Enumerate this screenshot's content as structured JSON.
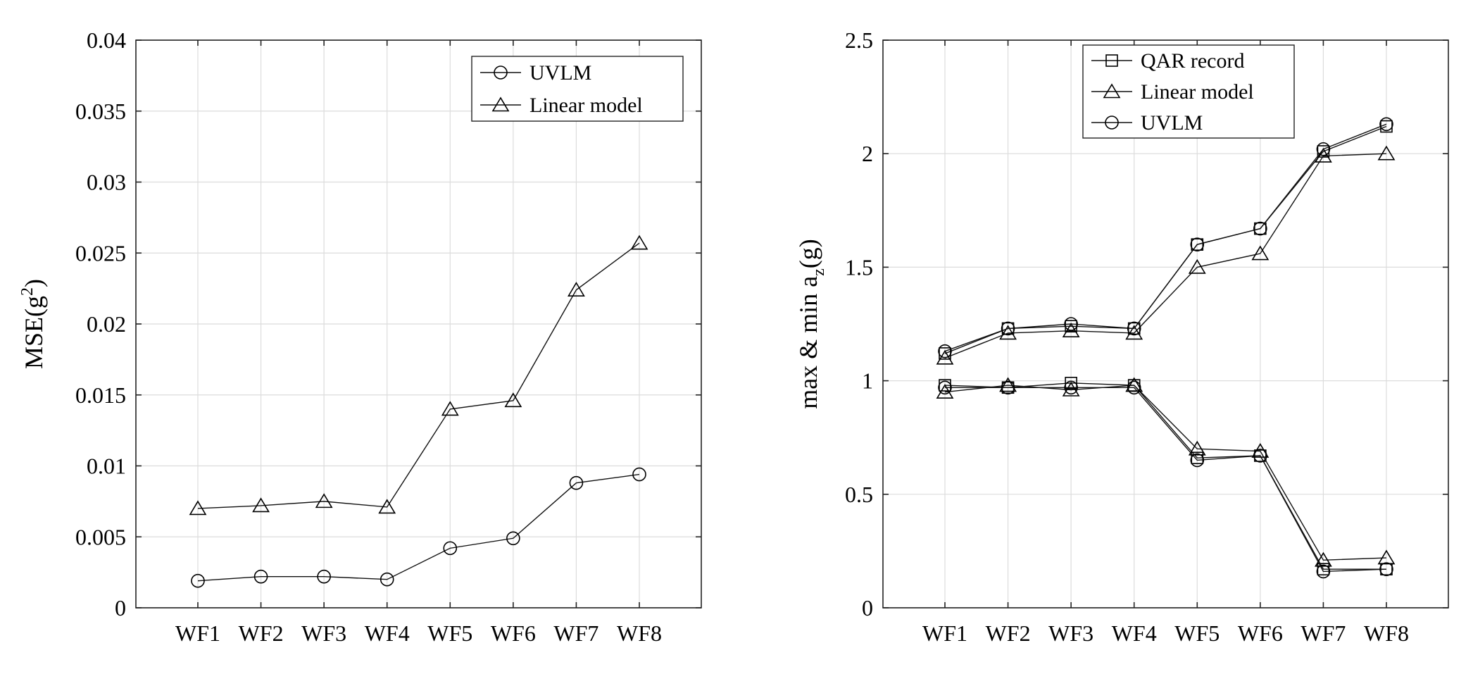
{
  "chart_data": [
    {
      "type": "line",
      "title": "",
      "xlabel": "",
      "ylabel": "MSE(g²)",
      "ylabel_base": "MSE(g",
      "ylabel_sup": "2",
      "ylabel_close": ")",
      "categories": [
        "WF1",
        "WF2",
        "WF3",
        "WF4",
        "WF5",
        "WF6",
        "WF7",
        "WF8"
      ],
      "ylim": [
        0,
        0.04
      ],
      "yticks": [
        0,
        0.005,
        0.01,
        0.015,
        0.02,
        0.025,
        0.03,
        0.035,
        0.04
      ],
      "ytick_labels": [
        "0",
        "0.005",
        "0.01",
        "0.015",
        "0.02",
        "0.025",
        "0.03",
        "0.035",
        "0.04"
      ],
      "grid": true,
      "legend_position": "top-right",
      "series": [
        {
          "name": "UVLM",
          "marker": "circle",
          "values": [
            0.0019,
            0.0022,
            0.0022,
            0.002,
            0.0042,
            0.0049,
            0.0088,
            0.0094
          ]
        },
        {
          "name": "Linear model",
          "marker": "triangle",
          "values": [
            0.007,
            0.0072,
            0.0075,
            0.0071,
            0.014,
            0.0146,
            0.0224,
            0.0257
          ]
        }
      ]
    },
    {
      "type": "line",
      "title": "",
      "xlabel": "",
      "ylabel": "max & min a_z(g)",
      "ylabel_base": "max & min a",
      "ylabel_sub": "z",
      "ylabel_close": "(g)",
      "categories": [
        "WF1",
        "WF2",
        "WF3",
        "WF4",
        "WF5",
        "WF6",
        "WF7",
        "WF8"
      ],
      "ylim": [
        0,
        2.5
      ],
      "yticks": [
        0,
        0.5,
        1,
        1.5,
        2,
        2.5
      ],
      "ytick_labels": [
        "0",
        "0.5",
        "1",
        "1.5",
        "2",
        "2.5"
      ],
      "grid": true,
      "legend_position": "top-left",
      "series": [
        {
          "name": "QAR record",
          "marker": "square",
          "group": "max",
          "values": [
            1.12,
            1.23,
            1.24,
            1.23,
            1.6,
            1.67,
            2.01,
            2.12
          ]
        },
        {
          "name": "Linear model",
          "marker": "triangle",
          "group": "max",
          "values": [
            1.1,
            1.21,
            1.22,
            1.21,
            1.5,
            1.56,
            1.99,
            2.0
          ]
        },
        {
          "name": "UVLM",
          "marker": "circle",
          "group": "max",
          "values": [
            1.13,
            1.23,
            1.25,
            1.23,
            1.6,
            1.67,
            2.02,
            2.13
          ]
        },
        {
          "name": "QAR record",
          "marker": "square",
          "group": "min",
          "values": [
            0.98,
            0.97,
            0.99,
            0.98,
            0.66,
            0.67,
            0.17,
            0.17
          ]
        },
        {
          "name": "Linear model",
          "marker": "triangle",
          "group": "min",
          "values": [
            0.95,
            0.98,
            0.96,
            0.98,
            0.7,
            0.69,
            0.21,
            0.22
          ]
        },
        {
          "name": "UVLM",
          "marker": "circle",
          "group": "min",
          "values": [
            0.97,
            0.97,
            0.97,
            0.97,
            0.65,
            0.67,
            0.16,
            0.17
          ]
        }
      ]
    }
  ]
}
